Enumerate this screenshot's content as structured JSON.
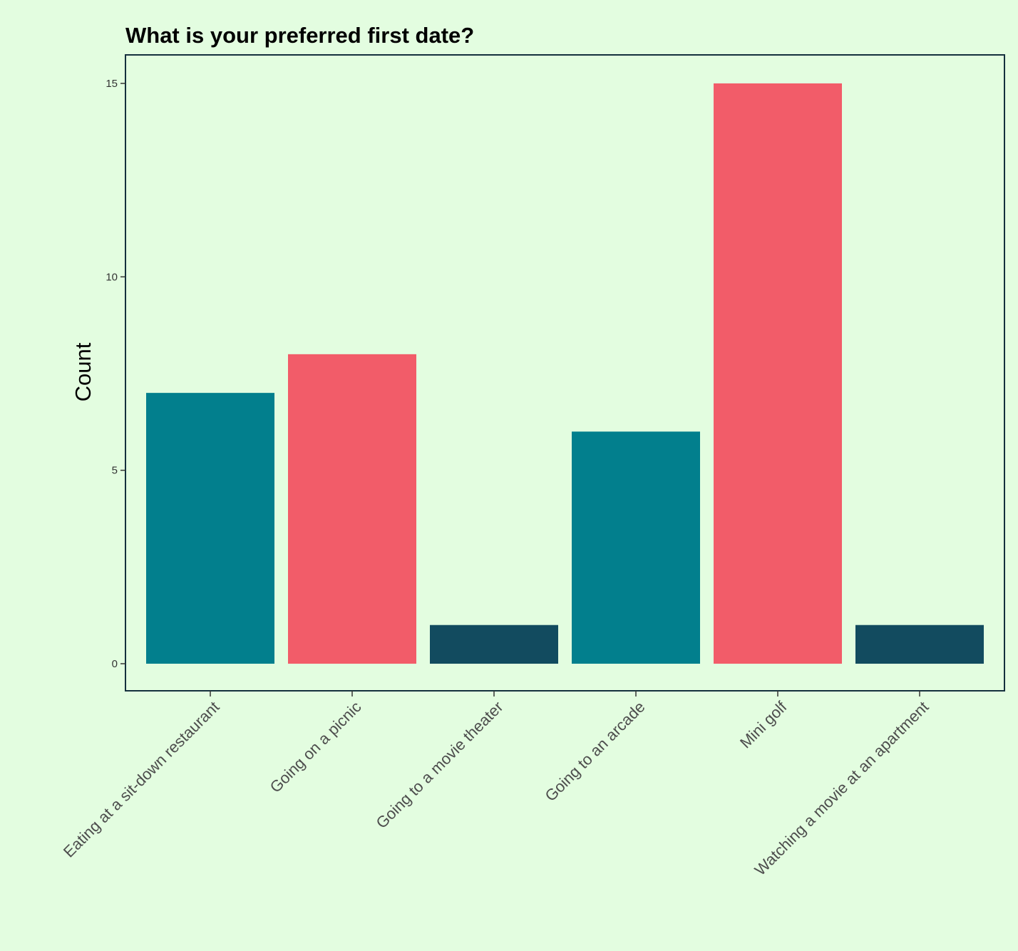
{
  "chart_data": {
    "type": "bar",
    "title": "What is your preferred first date?",
    "xlabel": "",
    "ylabel": "Count",
    "categories": [
      "Eating at a sit-down restaurant",
      "Going on a picnic",
      "Going to a movie theater",
      "Going to an arcade",
      "Mini golf",
      "Watching a movie at an apartment"
    ],
    "values": [
      7,
      8,
      1,
      6,
      15,
      1
    ],
    "bar_colors": [
      "#027f8d",
      "#f25c69",
      "#124b5f",
      "#027f8d",
      "#f25c69",
      "#124b5f"
    ],
    "ylim": [
      -0.7,
      15.75
    ],
    "yticks": [
      0,
      5,
      10,
      15
    ],
    "grid": false,
    "legend": "none"
  },
  "colors": {
    "background": "#e3fde0",
    "panel_border": "#14303d"
  }
}
